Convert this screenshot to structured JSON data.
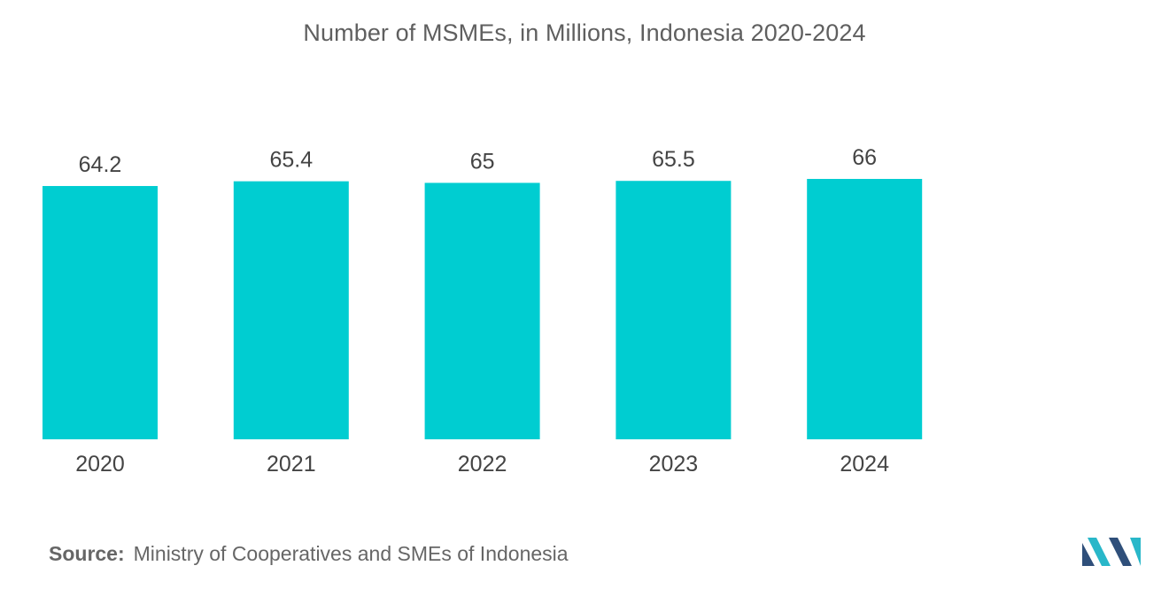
{
  "chart_data": {
    "type": "bar",
    "title": "Number of MSMEs, in Millions, Indonesia 2020-2024",
    "categories": [
      "2020",
      "2021",
      "2022",
      "2023",
      "2024"
    ],
    "values": [
      64.2,
      65.4,
      65,
      65.5,
      66
    ],
    "value_labels": [
      "64.2",
      "65.4",
      "65",
      "65.5",
      "66"
    ],
    "xlabel": "",
    "ylabel": "",
    "ylim": [
      0,
      66
    ],
    "grid": false,
    "bar_color": "#00cdd1"
  },
  "footer": {
    "source_label": "Source:",
    "source_text": "Ministry of Cooperatives and SMEs of Indonesia"
  },
  "colors": {
    "title": "#5f5f5f",
    "label": "#444444",
    "logo_dark": "#2f4f7a",
    "logo_accent": "#29b7c9"
  }
}
